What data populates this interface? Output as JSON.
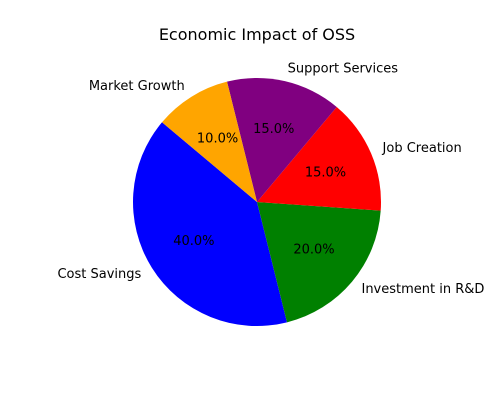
{
  "chart_data": {
    "type": "pie",
    "title": "Economic Impact of OSS",
    "start_angle_deg": 140,
    "direction": "counterclockwise",
    "slices": [
      {
        "label": "Cost Savings",
        "value": 40.0,
        "pct_label": "40.0%",
        "color": "#0000ff"
      },
      {
        "label": "Investment in R&D",
        "value": 20.0,
        "pct_label": "20.0%",
        "color": "#008000"
      },
      {
        "label": "Job Creation",
        "value": 15.0,
        "pct_label": "15.0%",
        "color": "#ff0000"
      },
      {
        "label": "Support Services",
        "value": 15.0,
        "pct_label": "15.0%",
        "color": "#800080"
      },
      {
        "label": "Market Growth",
        "value": 10.0,
        "pct_label": "10.0%",
        "color": "#ffa500"
      }
    ]
  }
}
